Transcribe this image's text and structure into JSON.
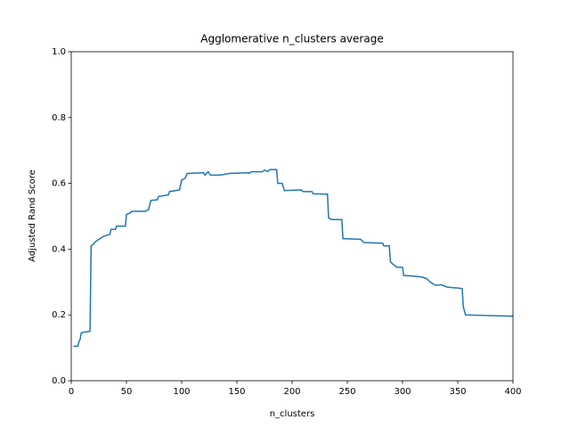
{
  "chart_data": {
    "type": "line",
    "title": "Agglomerative n_clusters average",
    "x_label": "n_clusters",
    "y_label": "Adjusted Rand Score",
    "x": [
      2,
      6,
      7,
      8,
      9,
      10,
      17,
      18,
      20,
      21,
      25,
      30,
      35,
      36,
      40,
      41,
      49,
      50,
      53,
      55,
      67,
      70,
      72,
      78,
      79,
      88,
      89,
      98,
      100,
      103,
      105,
      120,
      121,
      124,
      126,
      135,
      143,
      160,
      161,
      163,
      173,
      175,
      178,
      180,
      186,
      187,
      191,
      193,
      208,
      210,
      218,
      219,
      232,
      233,
      236,
      245,
      246,
      262,
      265,
      282,
      283,
      288,
      289,
      291,
      295,
      300,
      301,
      310,
      318,
      322,
      325,
      330,
      335,
      340,
      345,
      350,
      354,
      355,
      357,
      400
    ],
    "series": [
      {
        "name": "average",
        "color": "#1f77b4",
        "values": [
          0.105,
          0.105,
          0.12,
          0.125,
          0.145,
          0.147,
          0.15,
          0.41,
          0.415,
          0.42,
          0.43,
          0.44,
          0.445,
          0.46,
          0.46,
          0.47,
          0.47,
          0.505,
          0.51,
          0.515,
          0.515,
          0.52,
          0.548,
          0.55,
          0.56,
          0.565,
          0.575,
          0.58,
          0.61,
          0.615,
          0.63,
          0.632,
          0.625,
          0.635,
          0.625,
          0.625,
          0.63,
          0.632,
          0.63,
          0.635,
          0.635,
          0.64,
          0.636,
          0.642,
          0.642,
          0.6,
          0.6,
          0.578,
          0.58,
          0.575,
          0.575,
          0.568,
          0.567,
          0.495,
          0.49,
          0.49,
          0.432,
          0.43,
          0.42,
          0.418,
          0.41,
          0.41,
          0.362,
          0.355,
          0.345,
          0.345,
          0.32,
          0.318,
          0.315,
          0.31,
          0.3,
          0.29,
          0.292,
          0.285,
          0.283,
          0.282,
          0.28,
          0.225,
          0.2,
          0.196
        ]
      }
    ],
    "xlim": [
      0,
      400
    ],
    "xticks": [
      0,
      50,
      100,
      150,
      200,
      250,
      300,
      350,
      400
    ],
    "ylim": [
      0,
      1
    ],
    "yticks": [
      {
        "value": 0,
        "label": "0.0"
      },
      0.2,
      0.4,
      0.6,
      0.8,
      {
        "value": 1,
        "label": "1.0"
      }
    ],
    "grid": false
  }
}
